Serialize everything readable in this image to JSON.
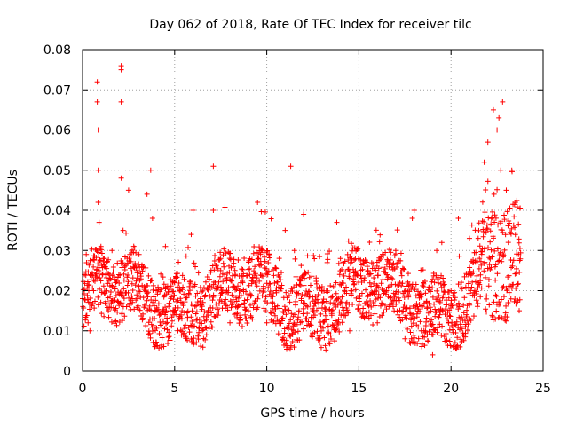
{
  "chart_data": {
    "type": "scatter",
    "title": "Day 062 of 2018, Rate Of TEC Index for receiver tilc",
    "xlabel": "GPS time / hours",
    "ylabel": "ROTI / TECUs",
    "xlim": [
      0,
      25
    ],
    "ylim": [
      0,
      0.08
    ],
    "xticks": [
      0,
      5,
      10,
      15,
      20,
      25
    ],
    "yticks": [
      0,
      0.01,
      0.02,
      0.03,
      0.04,
      0.05,
      0.06,
      0.07,
      0.08
    ],
    "xtick_labels": [
      "0",
      "5",
      "10",
      "15",
      "20",
      "25"
    ],
    "ytick_labels": [
      "0",
      "0.01",
      "0.02",
      "0.03",
      "0.04",
      "0.05",
      "0.06",
      "0.07",
      "0.08"
    ],
    "grid": true,
    "marker": "+",
    "color": "#ff0000",
    "series": [
      {
        "name": "ROTI",
        "note": "dense band of several thousand points between ~0.005 and ~0.035 TECU/s spanning 0-23.8 h; listed values are representative readings including notable outliers",
        "points": [
          [
            0.0,
            0.018
          ],
          [
            0.1,
            0.024
          ],
          [
            0.2,
            0.029
          ],
          [
            0.3,
            0.012
          ],
          [
            0.4,
            0.01
          ],
          [
            0.6,
            0.02
          ],
          [
            0.8,
            0.072
          ],
          [
            0.8,
            0.067
          ],
          [
            0.85,
            0.06
          ],
          [
            0.85,
            0.05
          ],
          [
            0.85,
            0.042
          ],
          [
            0.9,
            0.037
          ],
          [
            1.0,
            0.031
          ],
          [
            1.2,
            0.026
          ],
          [
            1.4,
            0.015
          ],
          [
            1.6,
            0.03
          ],
          [
            1.8,
            0.022
          ],
          [
            2.1,
            0.076
          ],
          [
            2.1,
            0.075
          ],
          [
            2.1,
            0.067
          ],
          [
            2.1,
            0.048
          ],
          [
            2.2,
            0.035
          ],
          [
            2.5,
            0.045
          ],
          [
            2.7,
            0.018
          ],
          [
            3.0,
            0.025
          ],
          [
            3.5,
            0.044
          ],
          [
            3.7,
            0.05
          ],
          [
            3.8,
            0.038
          ],
          [
            4.0,
            0.02
          ],
          [
            4.5,
            0.031
          ],
          [
            5.0,
            0.022
          ],
          [
            5.4,
            0.015
          ],
          [
            5.9,
            0.034
          ],
          [
            6.0,
            0.04
          ],
          [
            6.4,
            0.018
          ],
          [
            7.1,
            0.051
          ],
          [
            7.1,
            0.04
          ],
          [
            7.5,
            0.025
          ],
          [
            8.0,
            0.012
          ],
          [
            8.5,
            0.02
          ],
          [
            9.0,
            0.015
          ],
          [
            9.5,
            0.042
          ],
          [
            9.7,
            0.03
          ],
          [
            10.0,
            0.012
          ],
          [
            10.5,
            0.02
          ],
          [
            11.0,
            0.035
          ],
          [
            11.3,
            0.051
          ],
          [
            11.5,
            0.03
          ],
          [
            12.0,
            0.039
          ],
          [
            12.5,
            0.015
          ],
          [
            13.0,
            0.021
          ],
          [
            13.8,
            0.037
          ],
          [
            14.0,
            0.028
          ],
          [
            14.5,
            0.01
          ],
          [
            15.0,
            0.018
          ],
          [
            15.5,
            0.025
          ],
          [
            16.0,
            0.012
          ],
          [
            16.5,
            0.02
          ],
          [
            17.0,
            0.03
          ],
          [
            17.5,
            0.008
          ],
          [
            17.9,
            0.038
          ],
          [
            18.0,
            0.04
          ],
          [
            18.5,
            0.022
          ],
          [
            19.0,
            0.004
          ],
          [
            19.5,
            0.032
          ],
          [
            20.0,
            0.02
          ],
          [
            20.4,
            0.038
          ],
          [
            21.0,
            0.033
          ],
          [
            21.5,
            0.022
          ],
          [
            21.8,
            0.052
          ],
          [
            22.0,
            0.057
          ],
          [
            22.3,
            0.065
          ],
          [
            22.5,
            0.06
          ],
          [
            22.6,
            0.063
          ],
          [
            22.7,
            0.05
          ],
          [
            22.8,
            0.067
          ],
          [
            23.0,
            0.045
          ],
          [
            23.3,
            0.05
          ],
          [
            23.5,
            0.042
          ],
          [
            23.7,
            0.015
          ]
        ]
      }
    ]
  }
}
